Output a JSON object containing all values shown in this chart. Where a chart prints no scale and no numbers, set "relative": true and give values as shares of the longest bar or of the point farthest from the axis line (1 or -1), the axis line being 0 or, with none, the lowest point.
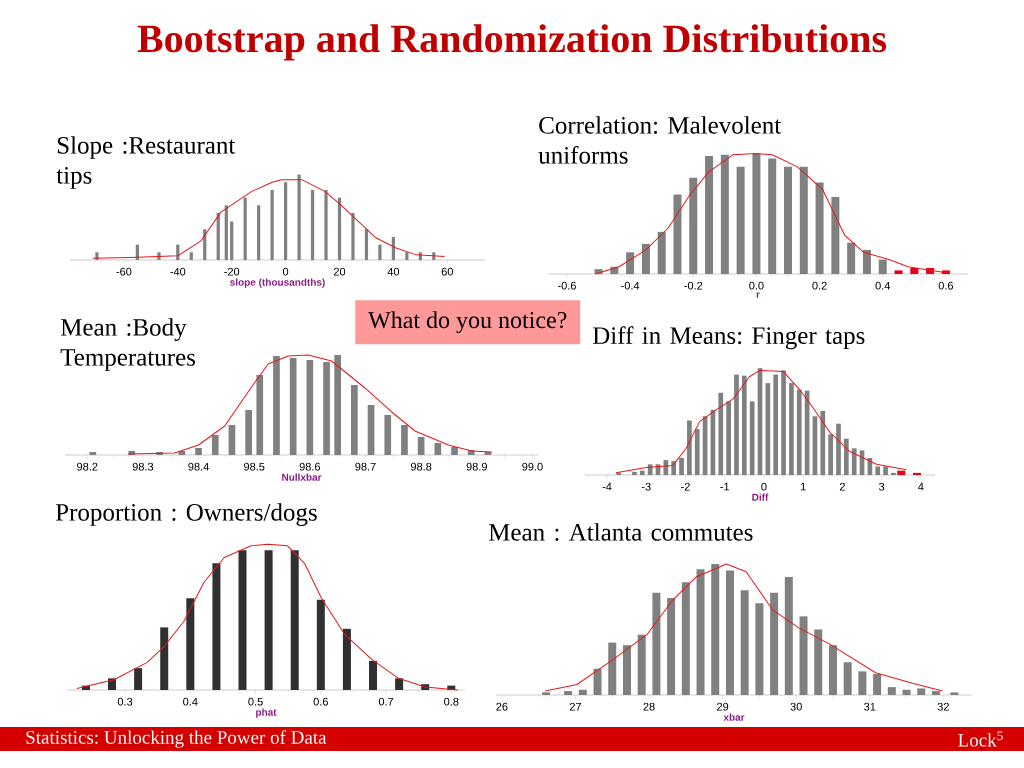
{
  "chart_data": [
    {
      "type": "bar",
      "relative": true,
      "title": "Slope :Restaurant tips",
      "xlabel": "slope (thousandths)",
      "xlim": [
        -80,
        74
      ],
      "xticks": [
        -60,
        -40,
        -20,
        0,
        20,
        40,
        60
      ],
      "annotations": [
        "Bootstrap and Randomization Distributions",
        "What do you notice?",
        "Statistics: Unlocking the Power of Data",
        "Lock$^{5}$"
      ],
      "series": [
        {
          "color": "#808080",
          "x": [
            -70,
            -55,
            -47,
            -40,
            -35,
            -30,
            -25,
            -22,
            -20,
            -15,
            -10,
            -5,
            0,
            5,
            10,
            15,
            20,
            25,
            30,
            35,
            40,
            45,
            50,
            55
          ],
          "values": [
            0.09,
            0.18,
            0.09,
            0.18,
            0.09,
            0.36,
            0.55,
            0.64,
            0.45,
            0.73,
            0.64,
            0.82,
            0.91,
            1,
            0.82,
            0.82,
            0.73,
            0.55,
            0.36,
            0.18,
            0.27,
            0.09,
            0.09,
            0.09
          ]
        },
        {
          "type": "line",
          "color": "#e31a1c",
          "x": [
            -71.5,
            -57.6,
            -40,
            -31.5,
            -24,
            -12.7,
            -5,
            -1.5,
            6,
            14.7,
            21,
            26,
            33.5,
            41,
            48.5,
            59
          ],
          "values": [
            0.02,
            0.03,
            0.05,
            0.22,
            0.56,
            0.8,
            0.91,
            0.94,
            0.94,
            0.8,
            0.63,
            0.48,
            0.26,
            0.14,
            0.06,
            0.04
          ]
        }
      ]
    },
    {
      "type": "bar",
      "relative": true,
      "title": "Correlation: Malevolent uniforms",
      "xlabel": "r",
      "xlim": [
        -0.66,
        0.67
      ],
      "xticks": [
        -0.6,
        -0.4,
        -0.2,
        {
          "value": 0,
          "label": "0.0"
        },
        0.2,
        0.4,
        0.6
      ],
      "series": [
        {
          "color": "#808080",
          "x": [
            -0.5,
            -0.45,
            -0.4,
            -0.35,
            -0.3,
            -0.25,
            -0.2,
            -0.15,
            -0.1,
            -0.05,
            0,
            0.05,
            0.1,
            0.15,
            0.2,
            0.25,
            0.3,
            0.35,
            0.4
          ],
          "values": [
            0.04,
            0.06,
            0.18,
            0.25,
            0.35,
            0.66,
            0.8,
            0.98,
            0.99,
            0.89,
            1,
            0.96,
            0.89,
            0.89,
            0.76,
            0.64,
            0.26,
            0.2,
            0.12
          ]
        },
        {
          "color": "#e8001c",
          "x": [
            0.45,
            0.5,
            0.55,
            0.6
          ],
          "values": [
            0.03,
            0.05,
            0.05,
            0.03
          ]
        },
        {
          "type": "line",
          "color": "#e31a1c",
          "x": [
            -0.51,
            -0.435,
            -0.35,
            -0.28,
            -0.21,
            -0.15,
            -0.075,
            0,
            0.05,
            0.13,
            0.21,
            0.28,
            0.34,
            0.42,
            0.48,
            0.59
          ],
          "values": [
            0,
            0.06,
            0.2,
            0.38,
            0.66,
            0.85,
            0.99,
            1,
            0.99,
            0.89,
            0.7,
            0.32,
            0.18,
            0.12,
            0.06,
            0.015
          ]
        }
      ]
    },
    {
      "type": "bar",
      "relative": true,
      "title": "Mean :Body Temperatures",
      "xlabel": "Nullxbar",
      "xlim": [
        98.16,
        99.01
      ],
      "xticks": [
        98.2,
        98.3,
        98.4,
        98.5,
        98.6,
        98.7,
        98.8,
        98.9,
        {
          "value": 99,
          "label": "99.0"
        }
      ],
      "series": [
        {
          "color": "#808080",
          "x": [
            98.21,
            98.28,
            98.33,
            98.37,
            98.4,
            98.43,
            98.46,
            98.49,
            98.51,
            98.54,
            98.57,
            98.6,
            98.63,
            98.65,
            98.68,
            98.71,
            98.74,
            98.77,
            98.8,
            98.83,
            98.86,
            98.89,
            98.92
          ],
          "values": [
            0.03,
            0.04,
            0.03,
            0.04,
            0.07,
            0.2,
            0.3,
            0.45,
            0.8,
            0.99,
            0.97,
            0.95,
            0.93,
            1,
            0.7,
            0.5,
            0.4,
            0.3,
            0.18,
            0.12,
            0.08,
            0.05,
            0.03
          ]
        },
        {
          "type": "line",
          "color": "#e31a1c",
          "x": [
            98.273,
            98.357,
            98.4,
            98.447,
            98.489,
            98.525,
            98.561,
            98.597,
            98.639,
            98.699,
            98.747,
            98.789,
            98.849,
            98.891,
            98.927
          ],
          "values": [
            0.01,
            0.02,
            0.1,
            0.29,
            0.63,
            0.91,
            0.99,
            1,
            0.94,
            0.67,
            0.43,
            0.24,
            0.1,
            0.04,
            0.03
          ]
        }
      ]
    },
    {
      "type": "bar",
      "relative": true,
      "title": "Diff in Means: Finger taps",
      "xlabel": "Diff",
      "xlim": [
        -4.56,
        4.36
      ],
      "xticks": [
        -4,
        -3,
        -2,
        -1,
        0,
        1,
        2,
        3,
        4
      ],
      "series": [
        {
          "color": "#808080",
          "x": [
            -3.7,
            -3.3,
            -3.1,
            -2.9,
            -2.7,
            -2.5,
            -2.3,
            -2.1,
            -1.9,
            -1.7,
            -1.5,
            -1.3,
            -1.1,
            -0.9,
            -0.7,
            -0.5,
            -0.3,
            -0.1,
            0.1,
            0.3,
            0.5,
            0.7,
            0.9,
            1.1,
            1.3,
            1.5,
            1.7,
            1.9,
            2.1,
            2.3,
            2.5,
            2.7,
            2.9,
            3.1,
            3.3
          ],
          "values": [
            0.02,
            0.03,
            0.04,
            0.1,
            0.1,
            0.14,
            0.13,
            0.16,
            0.51,
            0.43,
            0.55,
            0.61,
            0.77,
            0.69,
            0.94,
            0.93,
            0.69,
            1,
            0.86,
            0.94,
            0.98,
            0.86,
            0.8,
            0.79,
            0.55,
            0.6,
            0.38,
            0.48,
            0.34,
            0.25,
            0.23,
            0.16,
            0.08,
            0.08,
            0.02
          ]
        },
        {
          "color": "#e8001c",
          "x": [
            3.5,
            3.9
          ],
          "values": [
            0.04,
            0.02
          ]
        },
        {
          "type": "line",
          "color": "#e31a1c",
          "x": [
            -3.77,
            -3.0,
            -2.32,
            -1.98,
            -1.64,
            -1.22,
            -0.79,
            -0.37,
            -0.11,
            0.49,
            0.91,
            1.25,
            1.68,
            2.19,
            2.87,
            3.63
          ],
          "values": [
            0.02,
            0.07,
            0.09,
            0.25,
            0.5,
            0.61,
            0.71,
            0.92,
            0.98,
            0.97,
            0.8,
            0.63,
            0.4,
            0.22,
            0.1,
            0.05
          ]
        }
      ]
    },
    {
      "type": "bar",
      "relative": true,
      "title": "Proportion : Owners/dogs",
      "xlabel": "phat",
      "xlim": [
        0.211,
        0.821
      ],
      "xticks": [
        0.3,
        0.4,
        0.5,
        0.6,
        0.7,
        0.8
      ],
      "series": [
        {
          "color": "#303030",
          "x": [
            0.24,
            0.28,
            0.32,
            0.36,
            0.4,
            0.44,
            0.48,
            0.52,
            0.56,
            0.6,
            0.64,
            0.68,
            0.72,
            0.76,
            0.8
          ],
          "values": [
            0.03,
            0.08,
            0.15,
            0.43,
            0.63,
            0.87,
            0.96,
            0.96,
            0.96,
            0.62,
            0.42,
            0.2,
            0.08,
            0.04,
            0.03
          ]
        },
        {
          "type": "line",
          "color": "#e31a1c",
          "x": [
            0.226,
            0.283,
            0.334,
            0.36,
            0.39,
            0.421,
            0.452,
            0.493,
            0.519,
            0.549,
            0.575,
            0.601,
            0.637,
            0.678,
            0.719,
            0.76,
            0.81
          ],
          "values": [
            0.01,
            0.07,
            0.19,
            0.3,
            0.47,
            0.74,
            0.91,
            0.99,
            1,
            0.99,
            0.87,
            0.63,
            0.38,
            0.21,
            0.08,
            0.02,
            0
          ]
        }
      ]
    },
    {
      "type": "bar",
      "relative": true,
      "title": "Mean : Atlanta commutes",
      "xlabel": "xbar",
      "xlim": [
        25.92,
        32.39
      ],
      "xticks": [
        26,
        27,
        28,
        29,
        30,
        31,
        32
      ],
      "series": [
        {
          "color": "#808080",
          "x": [
            26.6,
            26.9,
            27.1,
            27.3,
            27.5,
            27.7,
            27.9,
            28.1,
            28.3,
            28.5,
            28.7,
            28.9,
            29.1,
            29.3,
            29.5,
            29.7,
            29.9,
            30.1,
            30.3,
            30.5,
            30.7,
            30.9,
            31.1,
            31.3,
            31.5,
            31.7,
            31.9,
            32.15
          ],
          "values": [
            0.02,
            0.03,
            0.04,
            0.2,
            0.4,
            0.38,
            0.46,
            0.78,
            0.74,
            0.86,
            0.96,
            1,
            0.95,
            0.8,
            0.7,
            0.78,
            0.9,
            0.6,
            0.5,
            0.38,
            0.25,
            0.18,
            0.16,
            0.06,
            0.04,
            0.05,
            0.03,
            0.02
          ]
        },
        {
          "type": "line",
          "color": "#e31a1c",
          "x": [
            26.59,
            27.02,
            27.51,
            27.97,
            28.33,
            28.64,
            29.05,
            29.32,
            29.68,
            30.04,
            30.45,
            31.08,
            31.58,
            31.99
          ],
          "values": [
            0.03,
            0.08,
            0.27,
            0.46,
            0.73,
            0.9,
            1,
            0.94,
            0.65,
            0.51,
            0.39,
            0.17,
            0.09,
            0.03
          ]
        }
      ]
    }
  ]
}
